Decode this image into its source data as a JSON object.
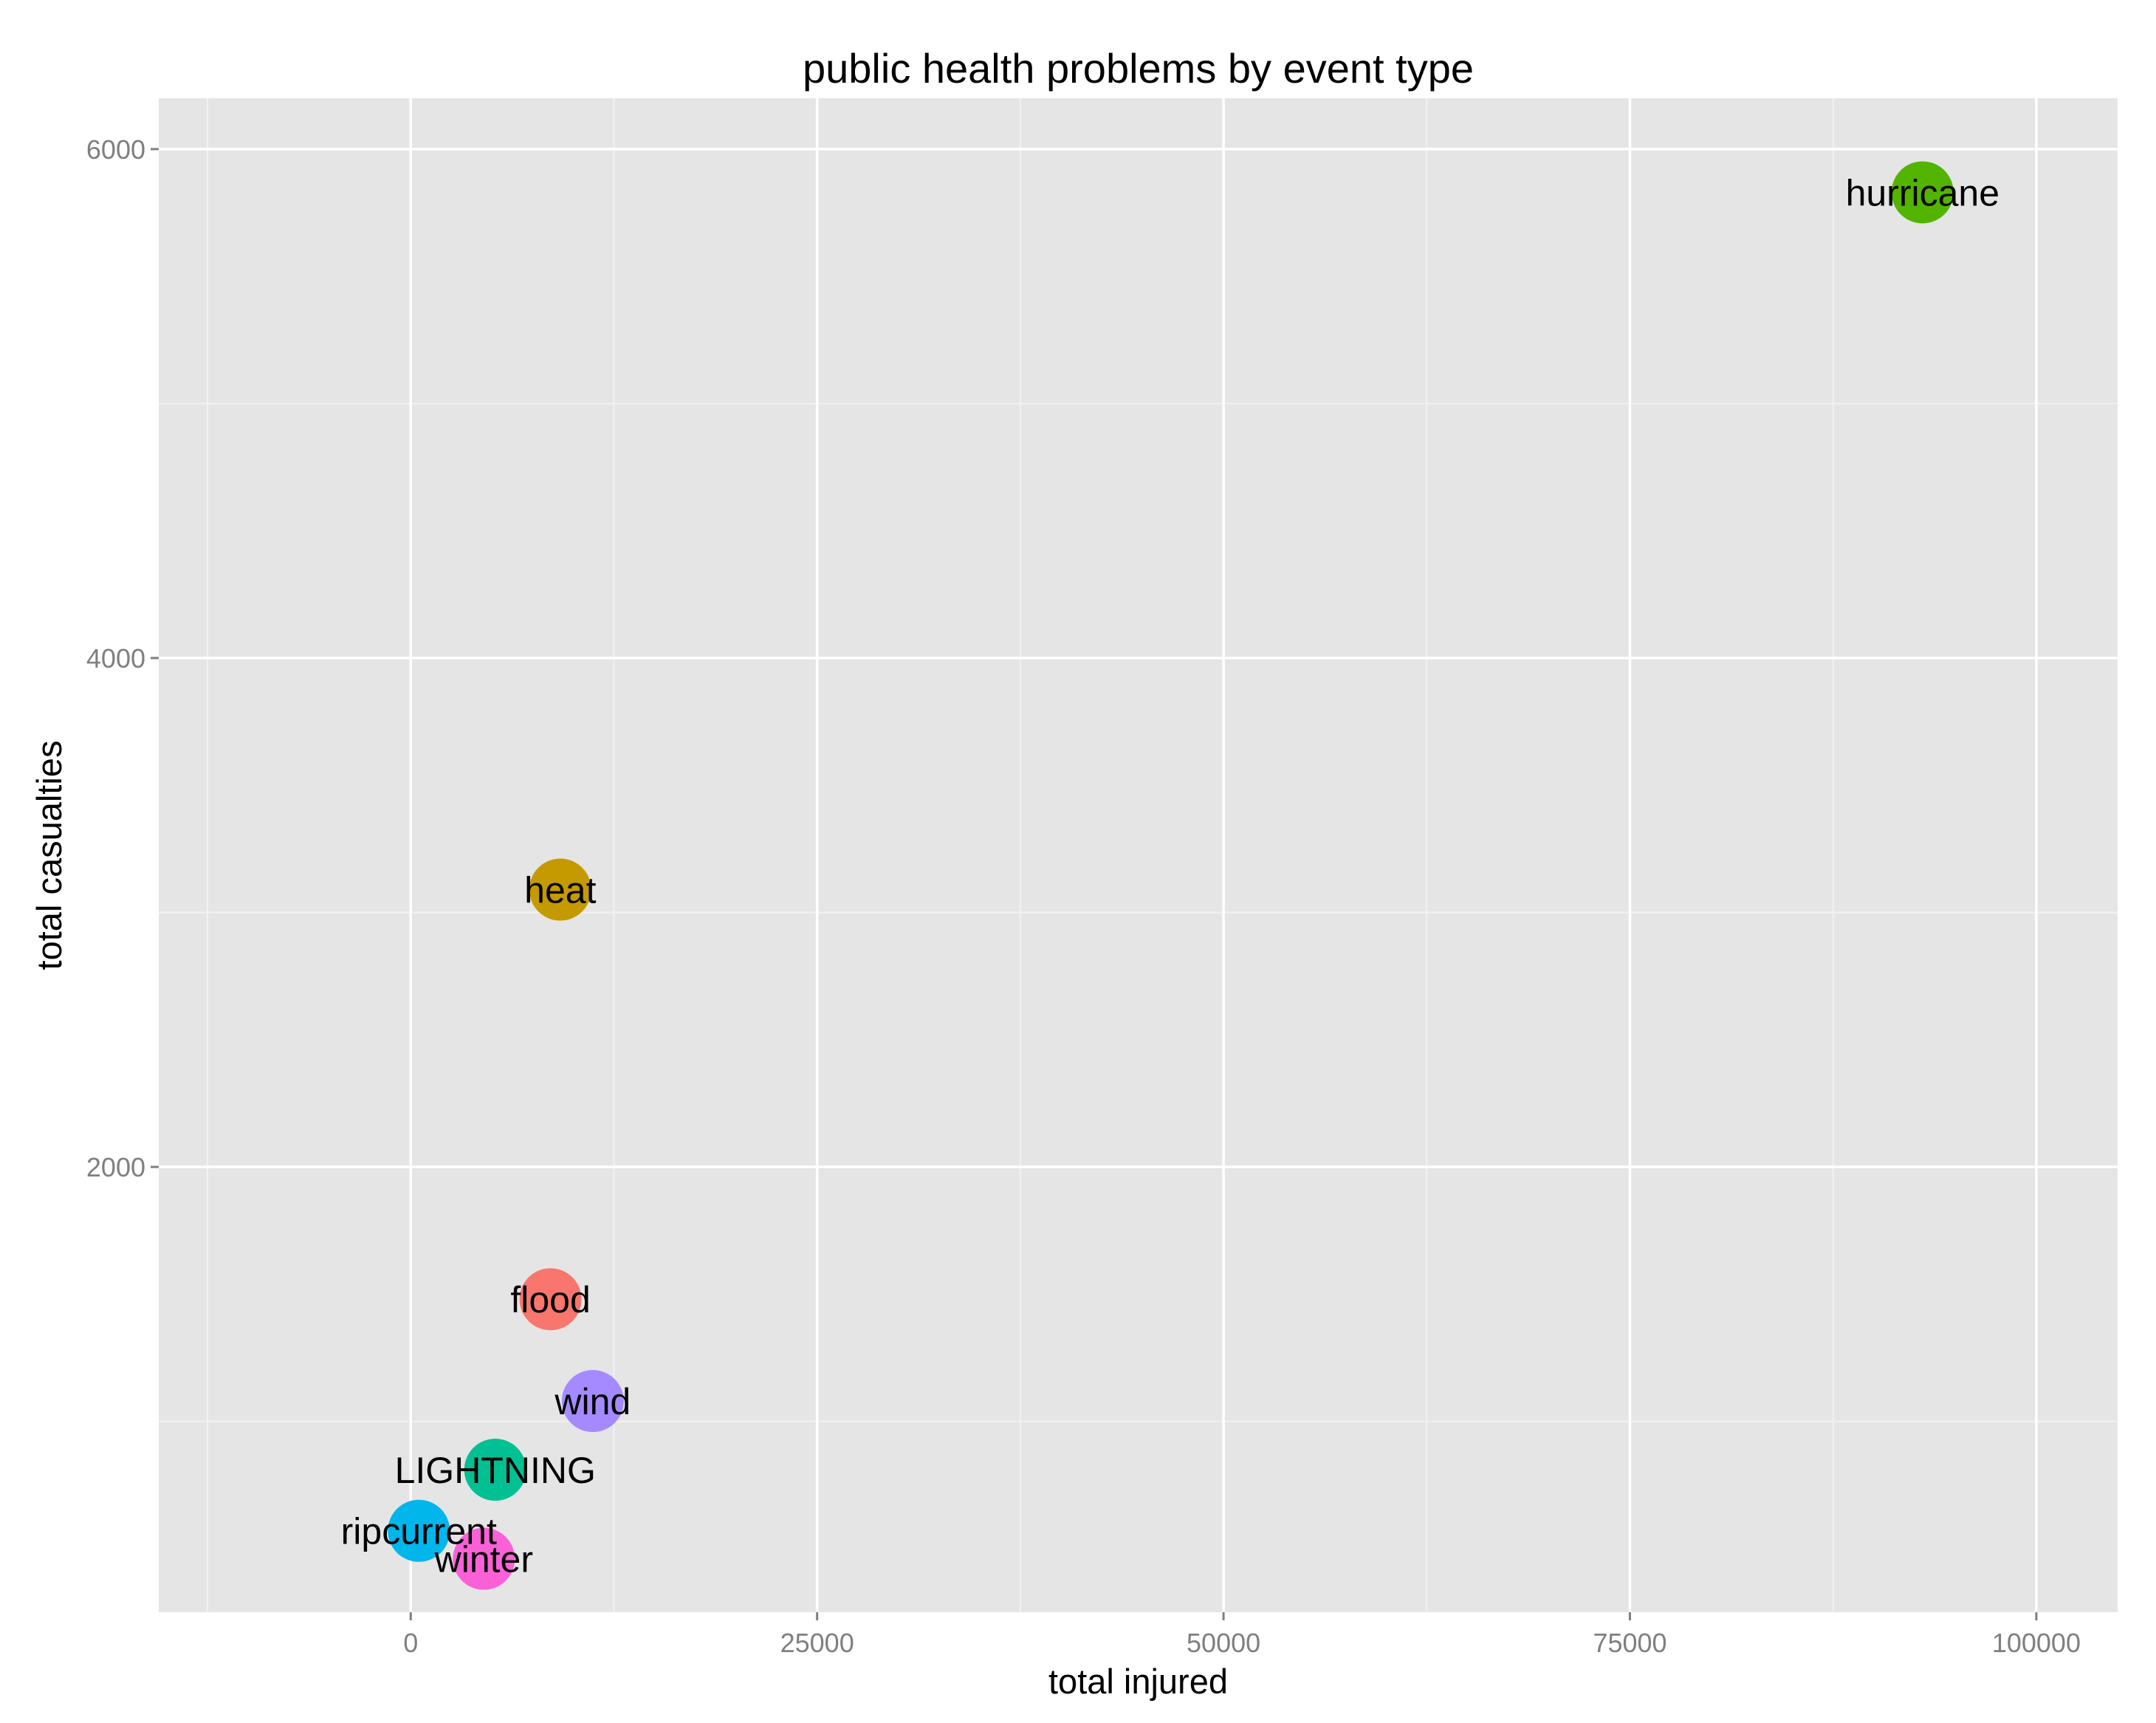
{
  "chart_data": {
    "type": "scatter",
    "title": "public health problems by event type",
    "xlabel": "total injured",
    "ylabel": "total casualties",
    "xlim": [
      -15500,
      105000
    ],
    "ylim": [
      250,
      6200
    ],
    "xticks": [
      0,
      25000,
      50000,
      75000,
      100000
    ],
    "yticks": [
      2000,
      4000,
      6000
    ],
    "xtick_labels": [
      "0",
      "25000",
      "50000",
      "75000",
      "100000"
    ],
    "ytick_labels": [
      "2000",
      "4000",
      "6000"
    ],
    "grid": true,
    "panel_background": "#e5e5e5",
    "grid_color": "#ffffff",
    "legend": "none",
    "points": [
      {
        "label": "hurricane",
        "x": 93000,
        "y": 5830,
        "color": "#53b400"
      },
      {
        "label": "heat",
        "x": 9200,
        "y": 3090,
        "color": "#c49a00"
      },
      {
        "label": "flood",
        "x": 8600,
        "y": 1480,
        "color": "#f8766d"
      },
      {
        "label": "wind",
        "x": 11200,
        "y": 1080,
        "color": "#a58aff"
      },
      {
        "label": "LIGHTNING",
        "x": 5200,
        "y": 810,
        "color": "#00c094"
      },
      {
        "label": "ripcurrent",
        "x": 500,
        "y": 570,
        "color": "#00b6eb"
      },
      {
        "label": "winter",
        "x": 4500,
        "y": 460,
        "color": "#fb61d7"
      }
    ]
  }
}
